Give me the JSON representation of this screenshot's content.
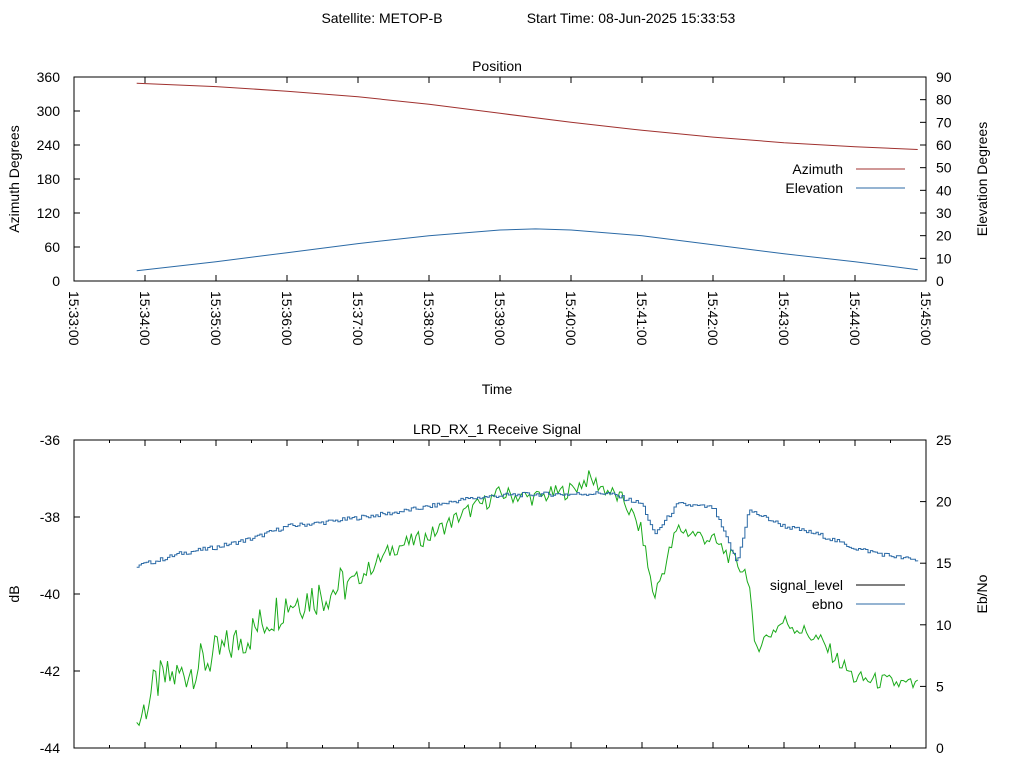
{
  "header": {
    "satellite": "Satellite: METOP-B",
    "start_time": "Start Time: 08-Jun-2025 15:33:53"
  },
  "colors": {
    "azimuth": "#a0312f",
    "elevation": "#2b6aa6",
    "signal_level_legend": "#000000",
    "signal_trace": "#1aaa1a",
    "ebno": "#2b6aa6"
  },
  "chart_data": [
    {
      "type": "line",
      "title": "Position",
      "xlabel": "Time",
      "ylabel": "Azimuth Degrees",
      "y2label": "Elevation Degrees",
      "xlim": [
        "15:33:00",
        "15:45:00"
      ],
      "ylim": [
        0,
        360
      ],
      "y2lim": [
        0,
        90
      ],
      "x_ticks": [
        "15:33:00",
        "15:34:00",
        "15:35:00",
        "15:36:00",
        "15:37:00",
        "15:38:00",
        "15:39:00",
        "15:40:00",
        "15:41:00",
        "15:42:00",
        "15:43:00",
        "15:44:00",
        "15:45:00"
      ],
      "y_ticks": [
        "0",
        "60",
        "120",
        "180",
        "240",
        "300",
        "360"
      ],
      "y2_ticks": [
        "0",
        "10",
        "20",
        "30",
        "40",
        "50",
        "60",
        "70",
        "80",
        "90"
      ],
      "legend_position": "right",
      "series": [
        {
          "name": "Azimuth",
          "axis": "y",
          "x": [
            "15:33:53",
            "15:35:00",
            "15:36:00",
            "15:37:00",
            "15:38:00",
            "15:39:00",
            "15:40:00",
            "15:41:00",
            "15:42:00",
            "15:43:00",
            "15:44:00",
            "15:44:53"
          ],
          "y": [
            349,
            343,
            335,
            325,
            312,
            296,
            280,
            266,
            254,
            244,
            237,
            232
          ]
        },
        {
          "name": "Elevation",
          "axis": "y2",
          "x": [
            "15:33:53",
            "15:35:00",
            "15:36:00",
            "15:37:00",
            "15:38:00",
            "15:39:00",
            "15:39:30",
            "15:40:00",
            "15:41:00",
            "15:42:00",
            "15:43:00",
            "15:44:00",
            "15:44:53"
          ],
          "y": [
            4.5,
            8.5,
            12.5,
            16.5,
            20.0,
            22.5,
            23.0,
            22.5,
            20.0,
            16.0,
            12.0,
            8.5,
            5.0
          ]
        }
      ]
    },
    {
      "type": "line",
      "title": "LRD_RX_1 Receive Signal",
      "xlabel": "",
      "ylabel": "dB",
      "y2label": "Eb/No",
      "xlim": [
        "15:33:00",
        "15:45:00"
      ],
      "ylim": [
        -44,
        -36
      ],
      "y2lim": [
        0,
        25
      ],
      "y_ticks": [
        "-44",
        "-42",
        "-40",
        "-38",
        "-36"
      ],
      "y2_ticks": [
        "0",
        "5",
        "10",
        "15",
        "20",
        "25"
      ],
      "x_tick_labels_shown": false,
      "legend_position": "right",
      "legend": [
        "signal_level",
        "ebno"
      ],
      "series": [
        {
          "name": "signal_level",
          "axis": "y",
          "x": [
            "15:33:53",
            "15:34:10",
            "15:34:30",
            "15:35:00",
            "15:35:30",
            "15:36:00",
            "15:36:30",
            "15:37:00",
            "15:37:30",
            "15:38:00",
            "15:38:30",
            "15:39:00",
            "15:39:30",
            "15:40:00",
            "15:40:15",
            "15:40:45",
            "15:41:00",
            "15:41:10",
            "15:41:30",
            "15:42:00",
            "15:42:30",
            "15:42:35",
            "15:43:00",
            "15:43:30",
            "15:44:00",
            "15:44:30",
            "15:44:53"
          ],
          "y": [
            -43.4,
            -42.3,
            -42.1,
            -41.6,
            -41.0,
            -40.2,
            -40.0,
            -39.6,
            -38.8,
            -38.5,
            -37.9,
            -37.4,
            -37.5,
            -37.3,
            -37.0,
            -37.6,
            -38.4,
            -40.1,
            -38.3,
            -38.6,
            -39.5,
            -41.4,
            -40.7,
            -41.2,
            -42.2,
            -42.3,
            -42.4
          ]
        },
        {
          "name": "ebno",
          "axis": "y2",
          "x": [
            "15:33:53",
            "15:34:10",
            "15:34:30",
            "15:35:00",
            "15:35:30",
            "15:36:00",
            "15:36:30",
            "15:37:00",
            "15:37:30",
            "15:38:00",
            "15:38:30",
            "15:39:00",
            "15:39:30",
            "15:40:00",
            "15:40:30",
            "15:41:00",
            "15:41:10",
            "15:41:30",
            "15:42:00",
            "15:42:20",
            "15:42:30",
            "15:43:00",
            "15:43:30",
            "15:44:00",
            "15:44:30",
            "15:44:53"
          ],
          "y": [
            14.8,
            15.2,
            15.8,
            16.3,
            17.0,
            18.0,
            18.3,
            18.7,
            19.1,
            19.6,
            20.2,
            20.5,
            20.6,
            20.6,
            20.7,
            19.8,
            17.3,
            19.8,
            19.5,
            15.0,
            19.3,
            18.0,
            17.3,
            16.2,
            15.6,
            15.2
          ]
        }
      ]
    }
  ]
}
